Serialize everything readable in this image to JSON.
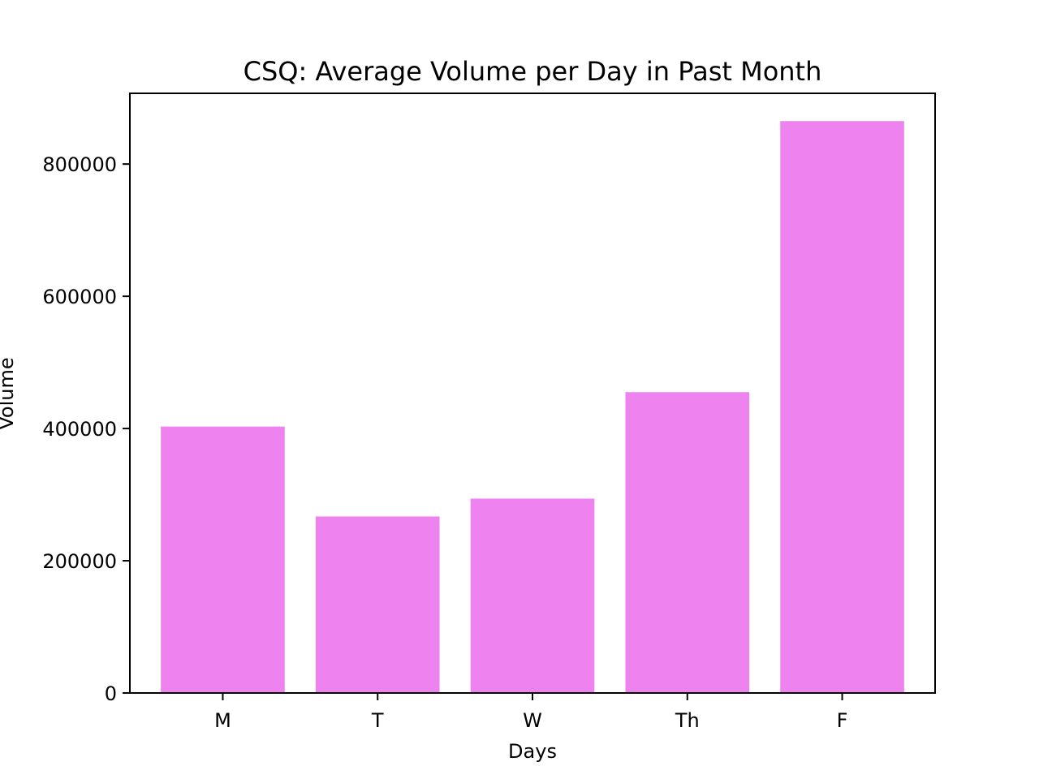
{
  "chart_data": {
    "type": "bar",
    "title": "CSQ: Average Volume per Day in Past Month",
    "xlabel": "Days",
    "ylabel": "Volume",
    "categories": [
      "M",
      "T",
      "W",
      "Th",
      "F"
    ],
    "values": [
      403000,
      267000,
      294000,
      455000,
      865000
    ],
    "ylim": [
      0,
      907000
    ],
    "yticks": [
      0,
      200000,
      400000,
      600000,
      800000
    ],
    "grid": false,
    "legend": "none",
    "bar_color": "#ee82ee"
  }
}
